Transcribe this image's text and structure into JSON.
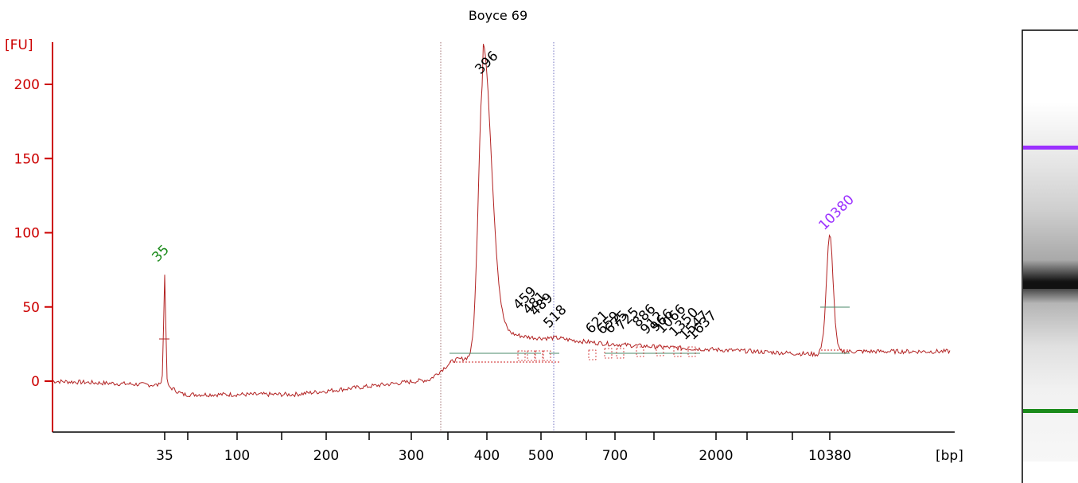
{
  "chart_data": {
    "type": "line",
    "title": "Boyce 69",
    "xlabel": "[bp]",
    "ylabel": "[FU]",
    "ylim": [
      -30,
      230
    ],
    "yticks": [
      0,
      50,
      100,
      150,
      200
    ],
    "xtick_labels": [
      "35",
      "100",
      "200",
      "300",
      "400",
      "500",
      "700",
      "2000",
      "10380"
    ],
    "x_scale": "nonlinear (electropherogram, size ladder)",
    "series": [
      {
        "trace": "electropherogram",
        "color": "#b22222",
        "peaks": [
          {
            "size_bp": 35,
            "height_fu": 75
          },
          {
            "size_bp": 396,
            "height_fu": 206
          },
          {
            "size_bp": 10380,
            "height_fu": 98
          }
        ],
        "baseline_fu": {
          "left": 0,
          "middle": -9,
          "right": 20
        }
      }
    ],
    "markers": [
      {
        "label": "35",
        "color": "#1a8a1a"
      },
      {
        "label": "10380",
        "color": "#9b30ff"
      }
    ],
    "peak_labels": [
      "396",
      "459",
      "481",
      "489",
      "518",
      "621",
      "659",
      "675",
      "725",
      "886",
      "912",
      "966",
      "1066",
      "1350",
      "1547",
      "1637"
    ],
    "region_boundaries_bp": [
      340,
      518
    ]
  },
  "gel": {
    "bands": [
      {
        "color": "#9b30ff",
        "role": "upper marker"
      },
      {
        "color": "#111111",
        "role": "main band"
      },
      {
        "color": "#1a8a1a",
        "role": "lower marker"
      }
    ]
  }
}
